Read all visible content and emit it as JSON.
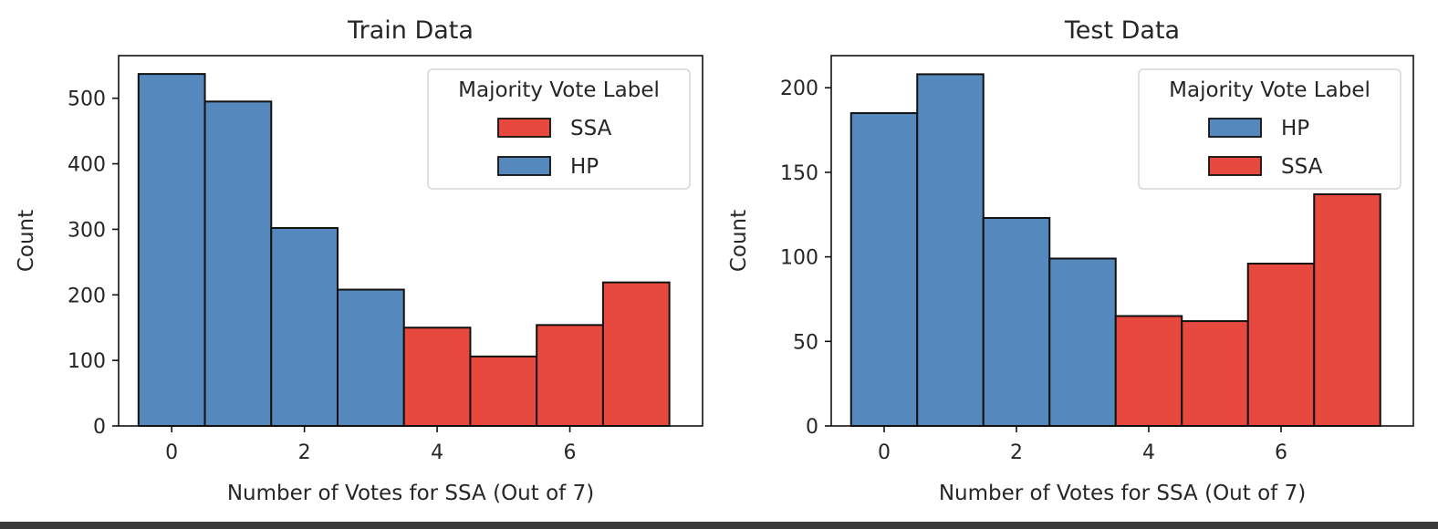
{
  "chart_data": [
    {
      "type": "bar",
      "subtype": "stacked histogram",
      "title": "Train Data",
      "xlabel": "Number of Votes for SSA (Out of 7)",
      "ylabel": "Count",
      "xlim": [
        -0.8,
        8.0
      ],
      "ylim": [
        0,
        565
      ],
      "xticks": [
        "0",
        "2",
        "4",
        "6"
      ],
      "yticks": [
        "0",
        "100",
        "200",
        "300",
        "400",
        "500"
      ],
      "legend": {
        "title": "Majority Vote Label",
        "placement": "upper right",
        "entries": [
          "SSA",
          "HP"
        ]
      },
      "grid": false,
      "categories": [
        0,
        1,
        2,
        3,
        4,
        5,
        6,
        7
      ],
      "series": [
        {
          "name": "SSA",
          "color": "#e8493e",
          "values": [
            0,
            0,
            0,
            0,
            150,
            106,
            154,
            219
          ]
        },
        {
          "name": "HP",
          "color": "#5589be",
          "values": [
            537,
            495,
            302,
            208,
            0,
            0,
            0,
            0
          ]
        }
      ]
    },
    {
      "type": "bar",
      "subtype": "stacked histogram",
      "title": "Test Data",
      "xlabel": "Number of Votes for SSA (Out of 7)",
      "ylabel": "Count",
      "xlim": [
        -0.8,
        8.0
      ],
      "ylim": [
        0,
        219
      ],
      "xticks": [
        "0",
        "2",
        "4",
        "6"
      ],
      "yticks": [
        "0",
        "50",
        "100",
        "150",
        "200"
      ],
      "legend": {
        "title": "Majority Vote Label",
        "placement": "upper right",
        "entries": [
          "HP",
          "SSA"
        ]
      },
      "grid": false,
      "categories": [
        0,
        1,
        2,
        3,
        4,
        5,
        6,
        7
      ],
      "series": [
        {
          "name": "HP",
          "color": "#5589be",
          "values": [
            185,
            208,
            123,
            99,
            0,
            0,
            0,
            0
          ]
        },
        {
          "name": "SSA",
          "color": "#e8493e",
          "values": [
            0,
            0,
            0,
            0,
            65,
            62,
            96,
            137
          ]
        }
      ]
    }
  ]
}
